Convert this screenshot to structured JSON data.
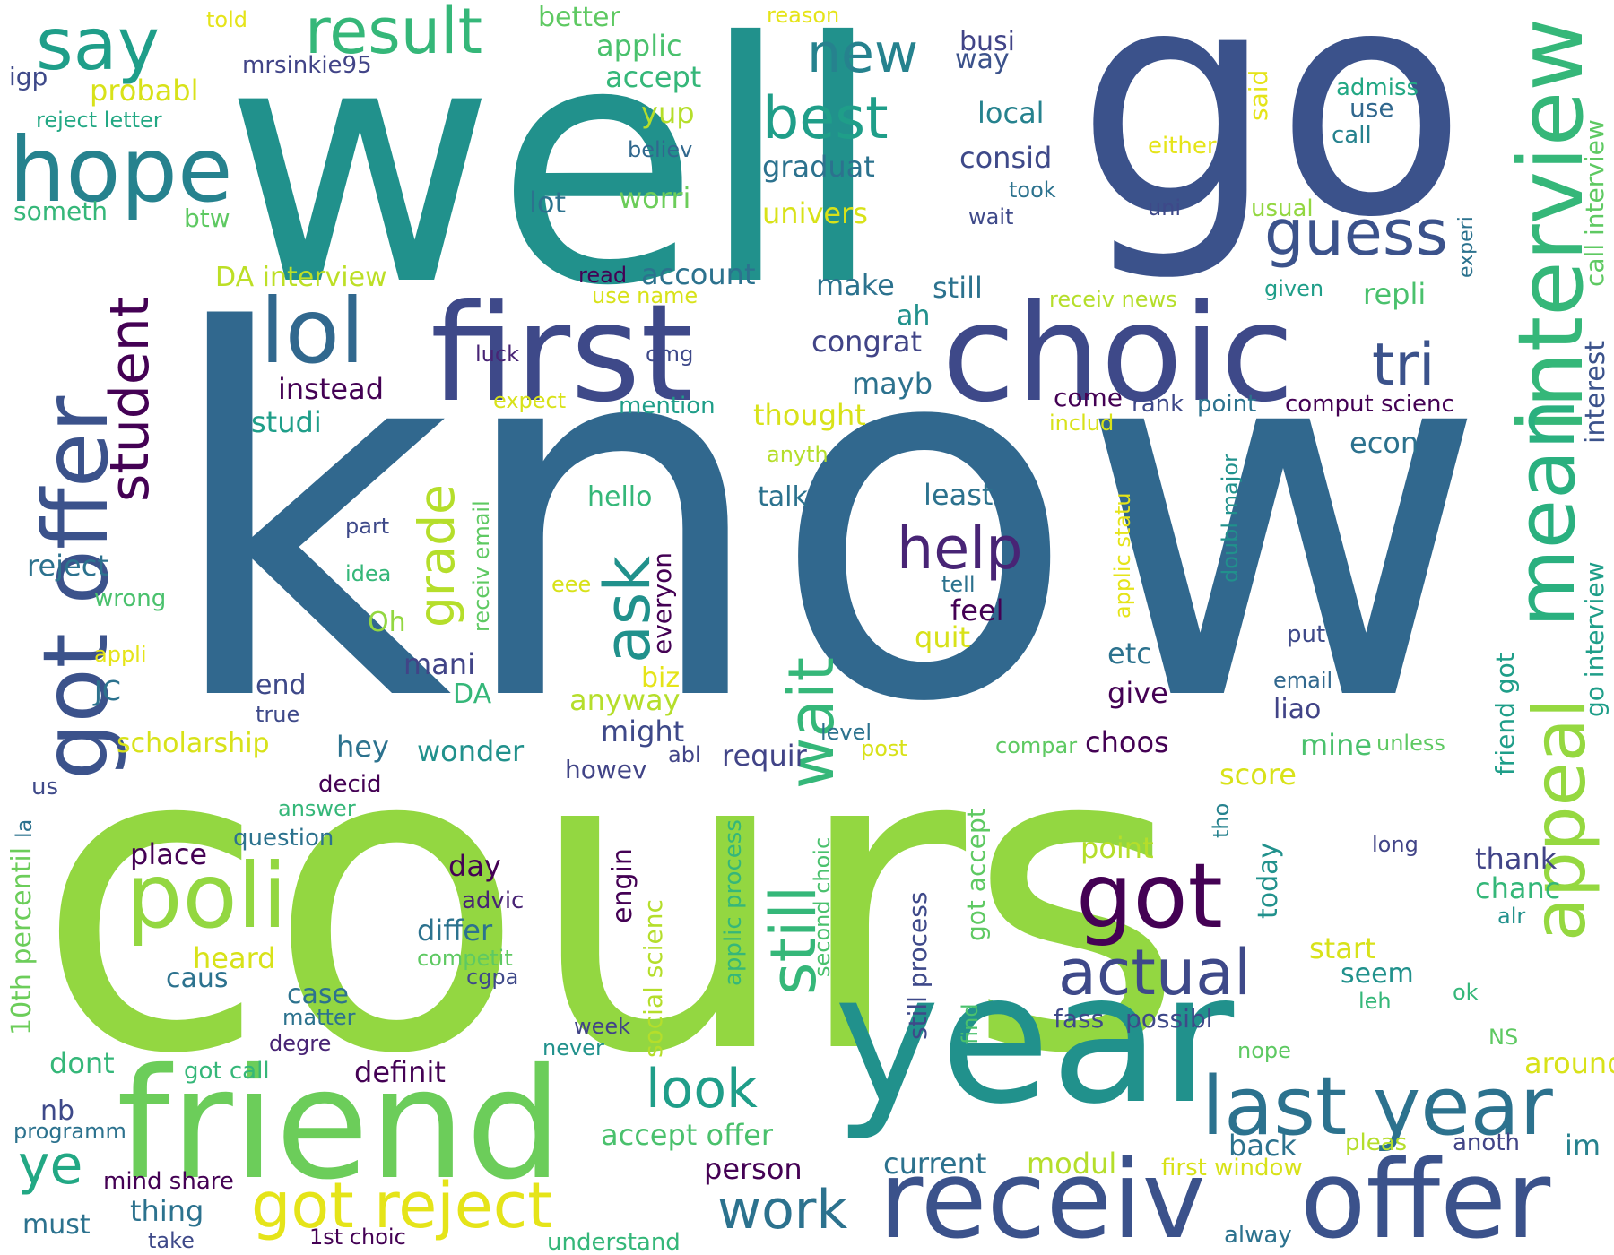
{
  "words": [
    {
      "text": "know",
      "color": "#31688e"
    },
    {
      "text": "cours",
      "color": "#93d741"
    },
    {
      "text": "well",
      "color": "#21918c"
    },
    {
      "text": "go",
      "color": "#3b528b"
    },
    {
      "text": "year",
      "color": "#21918c"
    },
    {
      "text": "friend",
      "color": "#6ccd5a"
    },
    {
      "text": "first",
      "color": "#3e4989"
    },
    {
      "text": "choic",
      "color": "#3e4989"
    },
    {
      "text": "receiv",
      "color": "#3b528b"
    },
    {
      "text": "offer",
      "color": "#3b528b"
    },
    {
      "text": "interview",
      "color": "#35b779"
    },
    {
      "text": "mean",
      "color": "#2ab07f"
    },
    {
      "text": "appeal",
      "color": "#95d840"
    },
    {
      "text": "got offer",
      "color": "#3b528b"
    },
    {
      "text": "last year",
      "color": "#2c728e"
    },
    {
      "text": "hope",
      "color": "#26828e"
    },
    {
      "text": "poli",
      "color": "#93d741"
    },
    {
      "text": "got",
      "color": "#440154"
    },
    {
      "text": "lol",
      "color": "#31688e"
    },
    {
      "text": "got reject",
      "color": "#e5e419"
    },
    {
      "text": "say",
      "color": "#1f9e89"
    },
    {
      "text": "result",
      "color": "#35b779"
    },
    {
      "text": "actual",
      "color": "#3e4989"
    },
    {
      "text": "new",
      "color": "#26828e"
    },
    {
      "text": "best",
      "color": "#1f9e89"
    },
    {
      "text": "guess",
      "color": "#3b528b"
    },
    {
      "text": "tri",
      "color": "#3b528b"
    },
    {
      "text": "still",
      "color": "#35b779"
    },
    {
      "text": "wait",
      "color": "#35b779"
    },
    {
      "text": "help",
      "color": "#482475"
    },
    {
      "text": "ask",
      "color": "#21918c"
    },
    {
      "text": "student",
      "color": "#440154"
    },
    {
      "text": "look",
      "color": "#1f9e89"
    },
    {
      "text": "ye",
      "color": "#22a884"
    },
    {
      "text": "work",
      "color": "#2c728e"
    },
    {
      "text": "grade",
      "color": "#b5de2b"
    },
    {
      "text": "accept offer",
      "color": "#4ac16d"
    },
    {
      "text": "scholarship",
      "color": "#d8e219"
    },
    {
      "text": "DA interview",
      "color": "#bddf26"
    },
    {
      "text": "applic",
      "color": "#4ac16d"
    },
    {
      "text": "accept",
      "color": "#35b779"
    },
    {
      "text": "better",
      "color": "#5ec962"
    },
    {
      "text": "busi",
      "color": "#414487"
    },
    {
      "text": "way",
      "color": "#3b528b"
    },
    {
      "text": "local",
      "color": "#26828e"
    },
    {
      "text": "consid",
      "color": "#3e4989"
    },
    {
      "text": "graduat",
      "color": "#2c728e"
    },
    {
      "text": "univers",
      "color": "#d8e219"
    },
    {
      "text": "worri",
      "color": "#6ccd5a"
    },
    {
      "text": "lot",
      "color": "#2c728e"
    },
    {
      "text": "yup",
      "color": "#b5de2b"
    },
    {
      "text": "believ",
      "color": "#31688e"
    },
    {
      "text": "probabl",
      "color": "#d8e219"
    },
    {
      "text": "igp",
      "color": "#3e4989"
    },
    {
      "text": "reject letter",
      "color": "#22a884"
    },
    {
      "text": "someth",
      "color": "#35b779"
    },
    {
      "text": "btw",
      "color": "#5ec962"
    },
    {
      "text": "mrsinkie95",
      "color": "#414487"
    },
    {
      "text": "told",
      "color": "#e5e419"
    },
    {
      "text": "reason",
      "color": "#e5e419"
    },
    {
      "text": "said",
      "color": "#e5e419"
    },
    {
      "text": "admiss",
      "color": "#22a884"
    },
    {
      "text": "use",
      "color": "#31688e"
    },
    {
      "text": "call",
      "color": "#26828e"
    },
    {
      "text": "either",
      "color": "#e5e419"
    },
    {
      "text": "uni",
      "color": "#3e4989"
    },
    {
      "text": "usual",
      "color": "#93d741"
    },
    {
      "text": "took",
      "color": "#2c728e"
    },
    {
      "text": "wait",
      "color": "#3e4989"
    },
    {
      "text": "experi",
      "color": "#2c728e"
    },
    {
      "text": "given",
      "color": "#1f9e89"
    },
    {
      "text": "account",
      "color": "#2c728e"
    },
    {
      "text": "make",
      "color": "#2c728e"
    },
    {
      "text": "still",
      "color": "#2c728e"
    },
    {
      "text": "repli",
      "color": "#4ac16d"
    },
    {
      "text": "read",
      "color": "#440154"
    },
    {
      "text": "use name",
      "color": "#d8e219"
    },
    {
      "text": "receiv news",
      "color": "#b5de2b"
    },
    {
      "text": "ah",
      "color": "#21918c"
    },
    {
      "text": "congrat",
      "color": "#414487"
    },
    {
      "text": "mayb",
      "color": "#2c728e"
    },
    {
      "text": "luck",
      "color": "#482475"
    },
    {
      "text": "omg",
      "color": "#3e4989"
    },
    {
      "text": "instead",
      "color": "#440154"
    },
    {
      "text": "studi",
      "color": "#1f9e89"
    },
    {
      "text": "expect",
      "color": "#d8e219"
    },
    {
      "text": "mention",
      "color": "#1f9e89"
    },
    {
      "text": "thought",
      "color": "#d8e219"
    },
    {
      "text": "come",
      "color": "#440154"
    },
    {
      "text": "rank",
      "color": "#3e4989"
    },
    {
      "text": "point",
      "color": "#2c728e"
    },
    {
      "text": "comput scienc",
      "color": "#440154"
    },
    {
      "text": "includ",
      "color": "#d8e219"
    },
    {
      "text": "econ",
      "color": "#2c728e"
    },
    {
      "text": "interest",
      "color": "#3b528b"
    },
    {
      "text": "call interview",
      "color": "#5ec962"
    },
    {
      "text": "go interview",
      "color": "#1f9e89"
    },
    {
      "text": "anyth",
      "color": "#b5de2b"
    },
    {
      "text": "hello",
      "color": "#35b779"
    },
    {
      "text": "talk",
      "color": "#2c728e"
    },
    {
      "text": "least",
      "color": "#2c728e"
    },
    {
      "text": "receiv email",
      "color": "#5ec962"
    },
    {
      "text": "everyon",
      "color": "#440154"
    },
    {
      "text": "applic statu",
      "color": "#e5e419"
    },
    {
      "text": "doubl major",
      "color": "#21918c"
    },
    {
      "text": "part",
      "color": "#3e4989"
    },
    {
      "text": "reject",
      "color": "#2c728e"
    },
    {
      "text": "idea",
      "color": "#35b779"
    },
    {
      "text": "eee",
      "color": "#d8e219"
    },
    {
      "text": "wrong",
      "color": "#4ac16d"
    },
    {
      "text": "tell",
      "color": "#2c728e"
    },
    {
      "text": "feel",
      "color": "#440154"
    },
    {
      "text": "quit",
      "color": "#d8e219"
    },
    {
      "text": "Oh",
      "color": "#93d741"
    },
    {
      "text": "appli",
      "color": "#e5e419"
    },
    {
      "text": "mani",
      "color": "#414487"
    },
    {
      "text": "etc",
      "color": "#2c728e"
    },
    {
      "text": "put",
      "color": "#3e4989"
    },
    {
      "text": "friend got",
      "color": "#1f9e89"
    },
    {
      "text": "biz",
      "color": "#e5e419"
    },
    {
      "text": "end",
      "color": "#3e4989"
    },
    {
      "text": "JC",
      "color": "#2c728e"
    },
    {
      "text": "DA",
      "color": "#35b779"
    },
    {
      "text": "anyway",
      "color": "#b5de2b"
    },
    {
      "text": "give",
      "color": "#440154"
    },
    {
      "text": "email",
      "color": "#31688e"
    },
    {
      "text": "liao",
      "color": "#414487"
    },
    {
      "text": "true",
      "color": "#3e4989"
    },
    {
      "text": "might",
      "color": "#3e4989"
    },
    {
      "text": "level",
      "color": "#2c728e"
    },
    {
      "text": "hey",
      "color": "#2c728e"
    },
    {
      "text": "wonder",
      "color": "#21918c"
    },
    {
      "text": "abl",
      "color": "#414487"
    },
    {
      "text": "requir",
      "color": "#414487"
    },
    {
      "text": "post",
      "color": "#d8e219"
    },
    {
      "text": "compar",
      "color": "#5ec962"
    },
    {
      "text": "choos",
      "color": "#440154"
    },
    {
      "text": "mine",
      "color": "#4ac16d"
    },
    {
      "text": "unless",
      "color": "#5ec962"
    },
    {
      "text": "howev",
      "color": "#414487"
    },
    {
      "text": "decid",
      "color": "#440154"
    },
    {
      "text": "us",
      "color": "#3e4989"
    },
    {
      "text": "answer",
      "color": "#35b779"
    },
    {
      "text": "score",
      "color": "#d8e219"
    },
    {
      "text": "tho",
      "color": "#26828e"
    },
    {
      "text": "la",
      "color": "#2c728e"
    },
    {
      "text": "question",
      "color": "#2c728e"
    },
    {
      "text": "place",
      "color": "#440154"
    },
    {
      "text": "engin",
      "color": "#440154"
    },
    {
      "text": "day",
      "color": "#440154"
    },
    {
      "text": "advic",
      "color": "#482475"
    },
    {
      "text": "social scienc",
      "color": "#b5de2b"
    },
    {
      "text": "applic process",
      "color": "#35b779"
    },
    {
      "text": "second choic",
      "color": "#4ac16d"
    },
    {
      "text": "still process",
      "color": "#3e4989"
    },
    {
      "text": "got accept",
      "color": "#5ec962"
    },
    {
      "text": "point",
      "color": "#b5de2b"
    },
    {
      "text": "today",
      "color": "#21918c"
    },
    {
      "text": "long",
      "color": "#414487"
    },
    {
      "text": "thank",
      "color": "#414487"
    },
    {
      "text": "chanc",
      "color": "#35b779"
    },
    {
      "text": "alr",
      "color": "#21918c"
    },
    {
      "text": "10th percentil",
      "color": "#6ccd5a"
    },
    {
      "text": "heard",
      "color": "#d8e219"
    },
    {
      "text": "differ",
      "color": "#2c728e"
    },
    {
      "text": "competit",
      "color": "#5ec962"
    },
    {
      "text": "caus",
      "color": "#2c728e"
    },
    {
      "text": "cgpa",
      "color": "#3e4989"
    },
    {
      "text": "case",
      "color": "#2c728e"
    },
    {
      "text": "matter",
      "color": "#2c728e"
    },
    {
      "text": "start",
      "color": "#d8e219"
    },
    {
      "text": "seem",
      "color": "#21918c"
    },
    {
      "text": "leh",
      "color": "#35b779"
    },
    {
      "text": "ok",
      "color": "#35b779"
    },
    {
      "text": "find",
      "color": "#4ac16d"
    },
    {
      "text": "fass",
      "color": "#3e4989"
    },
    {
      "text": "possibl",
      "color": "#3e4989"
    },
    {
      "text": "degre",
      "color": "#482475"
    },
    {
      "text": "week",
      "color": "#414487"
    },
    {
      "text": "never",
      "color": "#21918c"
    },
    {
      "text": "nope",
      "color": "#5ec962"
    },
    {
      "text": "NS",
      "color": "#5ec962"
    },
    {
      "text": "around",
      "color": "#d8e219"
    },
    {
      "text": "dont",
      "color": "#35b779"
    },
    {
      "text": "got call",
      "color": "#35b779"
    },
    {
      "text": "definit",
      "color": "#440154"
    },
    {
      "text": "nb",
      "color": "#3e4989"
    },
    {
      "text": "programm",
      "color": "#2c728e"
    },
    {
      "text": "mind share",
      "color": "#440154"
    },
    {
      "text": "thing",
      "color": "#2c728e"
    },
    {
      "text": "must",
      "color": "#2c728e"
    },
    {
      "text": "take",
      "color": "#3e4989"
    },
    {
      "text": "1st choic",
      "color": "#440154"
    },
    {
      "text": "understand",
      "color": "#35b779"
    },
    {
      "text": "person",
      "color": "#440154"
    },
    {
      "text": "current",
      "color": "#2c728e"
    },
    {
      "text": "modul",
      "color": "#b5de2b"
    },
    {
      "text": "back",
      "color": "#2c728e"
    },
    {
      "text": "pleas",
      "color": "#b5de2b"
    },
    {
      "text": "anoth",
      "color": "#414487"
    },
    {
      "text": "im",
      "color": "#26828e"
    },
    {
      "text": "first window",
      "color": "#d8e219"
    },
    {
      "text": "alway",
      "color": "#2c728e"
    }
  ]
}
